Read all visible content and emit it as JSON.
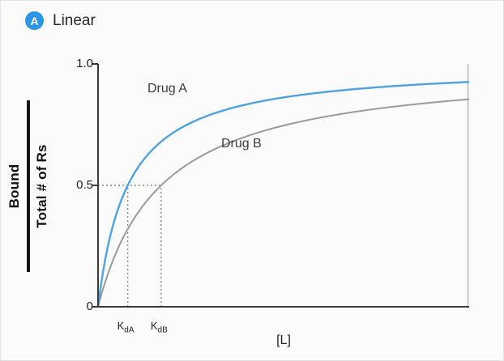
{
  "page": {
    "panel_badge": "A",
    "title": "Linear"
  },
  "chart_data": {
    "type": "line",
    "title": "Linear",
    "xlabel": "[L]",
    "ylabel": {
      "numerator": "Bound",
      "denominator": "Total # of Rs"
    },
    "x_range": [
      0,
      1
    ],
    "y_range": [
      0,
      1
    ],
    "grid": false,
    "legend_position": "inline-labels",
    "y_ticks": [
      {
        "label": "1.0",
        "value": 1.0
      },
      {
        "label": "0.5",
        "value": 0.5
      },
      {
        "label": "0",
        "value": 0.0
      }
    ],
    "axis_color": "#3a3a3a",
    "series": [
      {
        "name": "Drug A",
        "color": "#4da3e0",
        "kd": 0.08,
        "equation": "y = x / (Kd + x)",
        "x": [
          0,
          0.02,
          0.05,
          0.08,
          0.1,
          0.15,
          0.2,
          0.3,
          0.4,
          0.5,
          0.6,
          0.7,
          0.8,
          0.9,
          1.0
        ],
        "y": [
          0,
          0.2,
          0.385,
          0.5,
          0.556,
          0.652,
          0.714,
          0.789,
          0.833,
          0.862,
          0.882,
          0.897,
          0.909,
          0.918,
          0.926
        ]
      },
      {
        "name": "Drug B",
        "color": "#9b9b9b",
        "kd": 0.17,
        "equation": "y = x / (Kd + x)",
        "x": [
          0,
          0.02,
          0.05,
          0.08,
          0.1,
          0.15,
          0.2,
          0.3,
          0.4,
          0.5,
          0.6,
          0.7,
          0.8,
          0.9,
          1.0
        ],
        "y": [
          0,
          0.105,
          0.227,
          0.32,
          0.37,
          0.469,
          0.541,
          0.638,
          0.702,
          0.746,
          0.779,
          0.805,
          0.825,
          0.841,
          0.855
        ]
      }
    ],
    "annotations": {
      "half_max": 0.5,
      "dotted_color": "#8a8a8a",
      "x_markers": [
        {
          "prefix": "K",
          "sub": "dA",
          "x": 0.08
        },
        {
          "prefix": "K",
          "sub": "dB",
          "x": 0.17
        }
      ]
    }
  }
}
